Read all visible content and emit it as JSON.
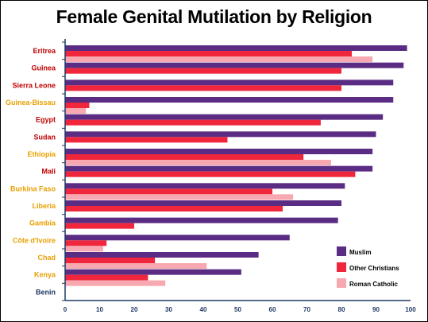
{
  "chart_data": {
    "type": "bar",
    "orientation": "horizontal",
    "title": "Female Genital Mutilation by Religion",
    "xlabel": "",
    "ylabel": "",
    "xlim": [
      0,
      100
    ],
    "xticks": [
      0,
      10,
      20,
      30,
      40,
      50,
      60,
      70,
      80,
      90,
      100
    ],
    "grid": false,
    "legend_position": "bottom-right",
    "categories": [
      "Eritrea",
      "Guinea",
      "Sierra Leone",
      "Guinea-Bissau",
      "Egypt",
      "Sudan",
      "Ethiopia",
      "Mali",
      "Burkina Faso",
      "Liberia",
      "Gambia",
      "Côte d'Ivoire",
      "Chad",
      "Kenya",
      "Benin"
    ],
    "category_label_colors": [
      "#c00000",
      "#c00000",
      "#c00000",
      "#e8a000",
      "#c00000",
      "#c00000",
      "#e8a000",
      "#c00000",
      "#e8a000",
      "#e8a000",
      "#e8a000",
      "#e8a000",
      "#e8a000",
      "#e8a000",
      "#1f3864"
    ],
    "series": [
      {
        "name": "Muslim",
        "color": "#5b2c83",
        "values": [
          99,
          98,
          95,
          95,
          92,
          90,
          89,
          89,
          81,
          80,
          79,
          65,
          56,
          51,
          null
        ]
      },
      {
        "name": "Other Christians",
        "color": "#f0273c",
        "values": [
          83,
          80,
          80,
          7,
          74,
          47,
          69,
          84,
          60,
          63,
          20,
          12,
          26,
          24,
          null
        ]
      },
      {
        "name": "Roman Catholic",
        "color": "#f7a8b0",
        "values": [
          89,
          null,
          null,
          6,
          null,
          null,
          77,
          null,
          66,
          null,
          null,
          11,
          41,
          29,
          null
        ]
      }
    ]
  }
}
